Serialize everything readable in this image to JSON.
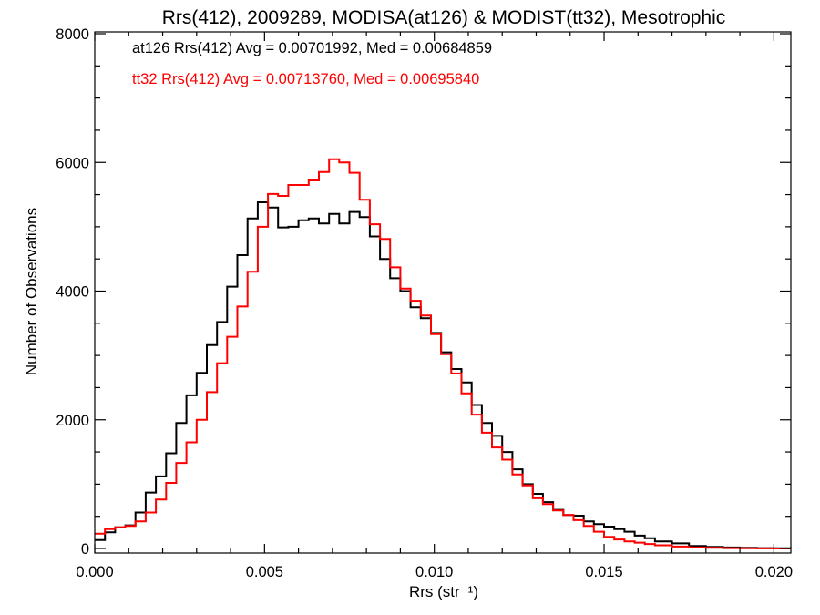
{
  "chart_data": {
    "type": "line",
    "title": "Rrs(412), 2009289, MODISA(at126) & MODIST(tt32), Mesotrophic",
    "xlabel": "Rrs (str⁻¹)",
    "ylabel": "Number of Observations",
    "xlim": [
      0.0,
      0.0205
    ],
    "ylim": [
      0,
      8000
    ],
    "xticks": [
      0.0,
      0.005,
      0.01,
      0.015,
      0.02
    ],
    "xtick_labels": [
      "0.000",
      "0.005",
      "0.010",
      "0.015",
      "0.020"
    ],
    "yticks": [
      0,
      2000,
      4000,
      6000,
      8000
    ],
    "ytick_labels": [
      "0",
      "2000",
      "4000",
      "6000",
      "8000"
    ],
    "grid": false,
    "step": true,
    "annotations": [
      {
        "text": "at126 Rrs(412) Avg = 0.00701992, Med = 0.00684859",
        "color": "#000000"
      },
      {
        "text": "tt32 Rrs(412) Avg = 0.00713760, Med = 0.00695840",
        "color": "#ff0000"
      }
    ],
    "series": [
      {
        "color": "#000000",
        "x": [
          0.0,
          0.0003,
          0.0006,
          0.0009,
          0.0012,
          0.0015,
          0.0018,
          0.0021,
          0.0024,
          0.0027,
          0.003,
          0.0033,
          0.0036,
          0.0039,
          0.0042,
          0.0045,
          0.0048,
          0.0051,
          0.0054,
          0.0057,
          0.006,
          0.0063,
          0.0066,
          0.0069,
          0.0072,
          0.0075,
          0.0078,
          0.0081,
          0.0084,
          0.0087,
          0.009,
          0.0093,
          0.0096,
          0.0099,
          0.0102,
          0.0105,
          0.0108,
          0.0111,
          0.0114,
          0.0117,
          0.012,
          0.0123,
          0.0126,
          0.0129,
          0.0132,
          0.0135,
          0.0138,
          0.0141,
          0.0144,
          0.0147,
          0.015,
          0.0153,
          0.0156,
          0.0159,
          0.0162,
          0.0165,
          0.017,
          0.0175,
          0.018,
          0.0185,
          0.019,
          0.0195,
          0.02,
          0.0205
        ],
        "y": [
          130,
          250,
          330,
          360,
          560,
          870,
          1120,
          1480,
          1950,
          2380,
          2730,
          3160,
          3520,
          4070,
          4560,
          5130,
          5380,
          5300,
          4990,
          5000,
          5100,
          5130,
          5050,
          5200,
          5050,
          5230,
          5150,
          4850,
          4500,
          4200,
          4000,
          3750,
          3580,
          3350,
          3050,
          2790,
          2580,
          2230,
          1950,
          1750,
          1500,
          1230,
          1000,
          850,
          720,
          600,
          520,
          510,
          420,
          380,
          340,
          300,
          260,
          200,
          160,
          110,
          80,
          40,
          25,
          15,
          10,
          6,
          3,
          0
        ]
      },
      {
        "color": "#ff0000",
        "x": [
          0.0,
          0.0003,
          0.0006,
          0.0009,
          0.0012,
          0.0015,
          0.0018,
          0.0021,
          0.0024,
          0.0027,
          0.003,
          0.0033,
          0.0036,
          0.0039,
          0.0042,
          0.0045,
          0.0048,
          0.0051,
          0.0054,
          0.0057,
          0.006,
          0.0063,
          0.0066,
          0.0069,
          0.0072,
          0.0075,
          0.0078,
          0.0081,
          0.0084,
          0.0087,
          0.009,
          0.0093,
          0.0096,
          0.0099,
          0.0102,
          0.0105,
          0.0108,
          0.0111,
          0.0114,
          0.0117,
          0.012,
          0.0123,
          0.0126,
          0.0129,
          0.0132,
          0.0135,
          0.0138,
          0.0141,
          0.0144,
          0.0147,
          0.015,
          0.0153,
          0.0156,
          0.0159,
          0.0162,
          0.0165,
          0.017,
          0.0175,
          0.018,
          0.0185,
          0.019,
          0.0195,
          0.02,
          0.0205
        ],
        "y": [
          230,
          300,
          330,
          350,
          420,
          560,
          760,
          1020,
          1330,
          1650,
          2000,
          2430,
          2880,
          3290,
          3760,
          4300,
          5000,
          5510,
          5480,
          5650,
          5650,
          5720,
          5850,
          6050,
          6000,
          5840,
          5420,
          5040,
          4810,
          4370,
          4040,
          3850,
          3620,
          3330,
          3020,
          2720,
          2410,
          2080,
          1800,
          1570,
          1380,
          1150,
          980,
          780,
          690,
          590,
          520,
          440,
          350,
          260,
          180,
          140,
          110,
          90,
          70,
          50,
          30,
          15,
          10,
          6,
          4,
          2,
          0,
          0
        ]
      }
    ]
  }
}
